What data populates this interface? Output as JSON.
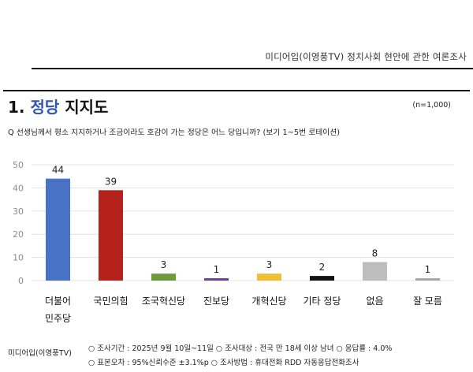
{
  "header": {
    "org": "미디어입(이영풍TV)  정치사회 현안에 관한 여론조사"
  },
  "slide": {
    "title_prefix": "1. ",
    "title_accent": "정당",
    "title_suffix": " 지지도",
    "sample_size": "(n=1,000)",
    "question": "Q 선생님께서 평소 지지하거나 조금이라도 호감이 가는 정당은 어느 당입니까? (보기 1~5번 로테이션)"
  },
  "footer": {
    "org": "미디어입(이영풍TV)",
    "line1": "○ 조사기간 : 2025년 9월 10일~11일  ○ 조사대상 : 전국 만 18세 이상 남녀  ○ 응답률 : 4.0%",
    "line2": "○ 표본오차 : 95%신뢰수준 ±3.1%p  ○ 조사방법 : 휴대전화 RDD 자동응답전화조사"
  },
  "chart_data": {
    "type": "bar",
    "categories": [
      "더불어\n민주당",
      "국민의힘",
      "조국혁신당",
      "진보당",
      "개혁신당",
      "기타 정당",
      "없음",
      "잘 모름"
    ],
    "values": [
      44,
      39,
      3,
      1,
      3,
      2,
      8,
      1
    ],
    "colors": [
      "#4a72c4",
      "#b5221c",
      "#6f9a3c",
      "#6a3d9a",
      "#f0bf36",
      "#111111",
      "#bdbdbd",
      "#a6a6a6"
    ],
    "yticks": [
      0,
      10,
      20,
      30,
      40,
      50
    ],
    "ylim": [
      0,
      50
    ],
    "grid": true
  }
}
